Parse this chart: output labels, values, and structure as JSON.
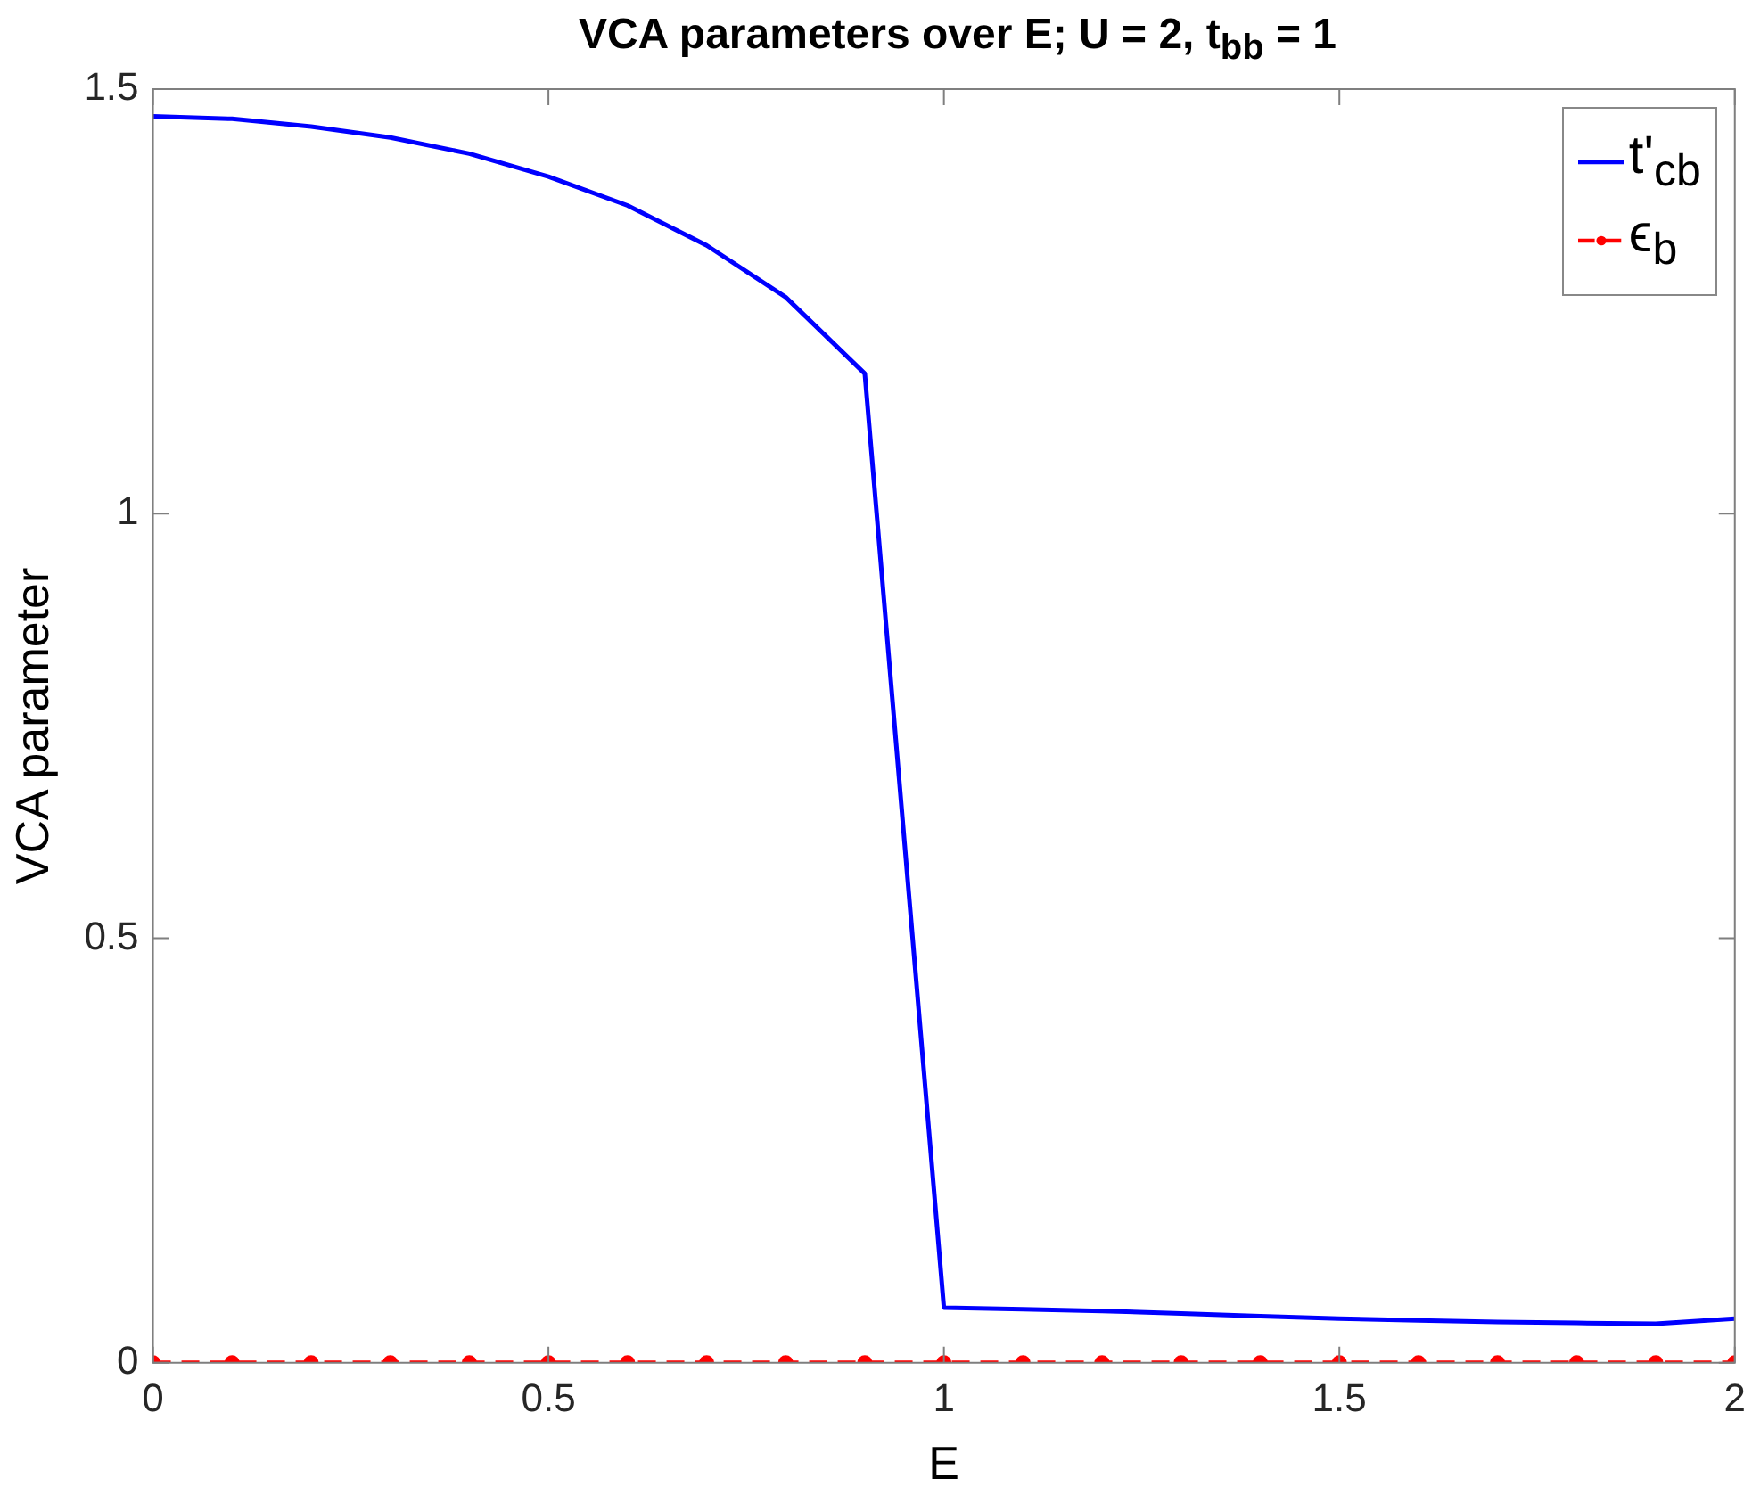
{
  "chart_data": {
    "type": "line",
    "title": "VCA parameters over E; U = 2,  t$_{bb}$ = 1",
    "xlabel": "E",
    "ylabel": "VCA parameter",
    "x": [
      0,
      0.1,
      0.2,
      0.3,
      0.4,
      0.5,
      0.6,
      0.7,
      0.8,
      0.9,
      1.0,
      1.1,
      1.2,
      1.3,
      1.4,
      1.5,
      1.6,
      1.7,
      1.8,
      1.9,
      2.0
    ],
    "series": [
      {
        "name": "t'$_{cb}$",
        "color": "#0000ff",
        "marker": "none",
        "line_style": "solid",
        "values": [
          1.468,
          1.465,
          1.456,
          1.443,
          1.424,
          1.397,
          1.363,
          1.316,
          1.255,
          1.165,
          0.065,
          0.063,
          0.061,
          0.058,
          0.055,
          0.052,
          0.05,
          0.048,
          0.047,
          0.046,
          0.052
        ]
      },
      {
        "name": "ϵ$_{b}$",
        "color": "#ff0000",
        "marker": "circle",
        "line_style": "dashed",
        "values": [
          0,
          0,
          0,
          0,
          0,
          0,
          0,
          0,
          0,
          0,
          0,
          0,
          0,
          0,
          0,
          0,
          0,
          0,
          0,
          0,
          0
        ]
      }
    ],
    "xlim": [
      0,
      2
    ],
    "xticks": [
      0,
      0.5,
      1,
      1.5,
      2
    ],
    "ylim": [
      0,
      1.5
    ],
    "yticks": [
      0,
      0.5,
      1,
      1.5
    ],
    "grid": false,
    "legend": "top right"
  }
}
